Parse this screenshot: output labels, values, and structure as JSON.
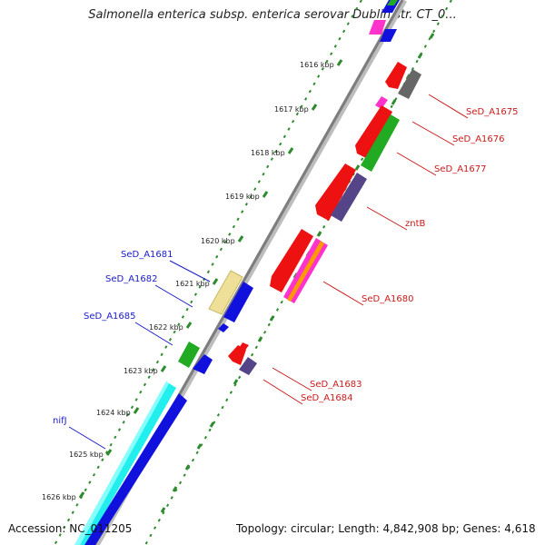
{
  "title": "Salmonella enterica subsp. enterica serovar Dublin str. CT_0...",
  "footer": {
    "accession": "Accession: NC_011205",
    "summary": "Topology: circular; Length: 4,842,908 bp; Genes: 4,618"
  },
  "colors": {
    "backbone": "#8a8a8a",
    "tick": "#2e8b2e",
    "forward_label": "#1a1acc",
    "reverse_label": "#cc1a1a",
    "red": "#ee1111",
    "blue": "#1111dd",
    "green": "#22aa22",
    "gray": "#666666",
    "purple": "#554488",
    "cyan": "#22eeee",
    "yellow": "#eee099",
    "magenta": "#ff33cc",
    "orange": "#ff9900"
  },
  "ruler": [
    {
      "label": "1616 kbp"
    },
    {
      "label": "1617 kbp"
    },
    {
      "label": "1618 kbp"
    },
    {
      "label": "1619 kbp"
    },
    {
      "label": "1620 kbp"
    },
    {
      "label": "1621 kbp"
    },
    {
      "label": "1622 kbp"
    },
    {
      "label": "1623 kbp"
    },
    {
      "label": "1624 kbp"
    },
    {
      "label": "1625 kbp"
    },
    {
      "label": "1626 kbp"
    }
  ],
  "gene_labels": [
    {
      "text": "SeD_A1675",
      "strand": "reverse"
    },
    {
      "text": "SeD_A1676",
      "strand": "reverse"
    },
    {
      "text": "SeD_A1677",
      "strand": "reverse"
    },
    {
      "text": "zntB",
      "strand": "reverse"
    },
    {
      "text": "SeD_A1680",
      "strand": "reverse"
    },
    {
      "text": "SeD_A1683",
      "strand": "reverse"
    },
    {
      "text": "SeD_A1684",
      "strand": "reverse"
    },
    {
      "text": "SeD_A1681",
      "strand": "forward"
    },
    {
      "text": "SeD_A1682",
      "strand": "forward"
    },
    {
      "text": "SeD_A1685",
      "strand": "forward"
    },
    {
      "text": "nifJ",
      "strand": "forward"
    }
  ]
}
